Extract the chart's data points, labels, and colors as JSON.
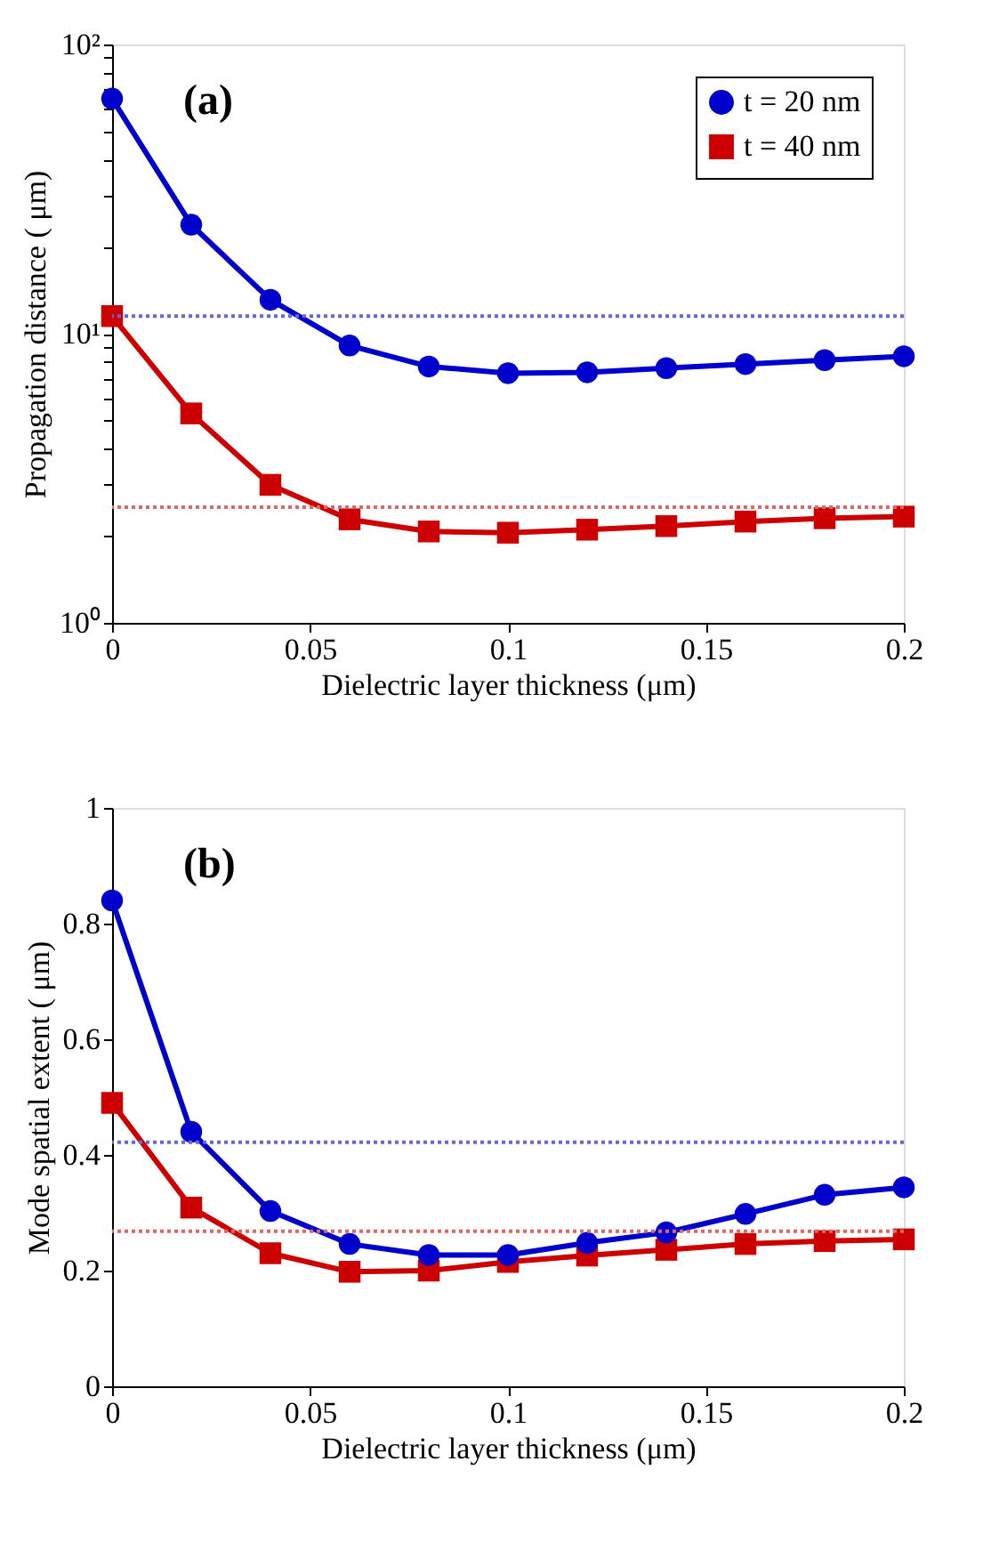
{
  "chart_data": [
    {
      "type": "line",
      "xlabel": "Dielectric layer thickness (μm)",
      "ylabel": "Propagation distance ( μm)",
      "annotations": [
        "(a)"
      ],
      "log": "y",
      "x": [
        0,
        0.02,
        0.04,
        0.06,
        0.08,
        0.1,
        0.12,
        0.14,
        0.16,
        0.18,
        0.2
      ],
      "series": [
        {
          "name": "t = 20 nm",
          "color": "#0000cc",
          "marker": "circle",
          "values": [
            65,
            23.8,
            13.1,
            9.1,
            7.7,
            7.3,
            7.35,
            7.6,
            7.85,
            8.1,
            8.35
          ]
        },
        {
          "name": "t = 40 nm",
          "color": "#cc0000",
          "marker": "square",
          "values": [
            11.5,
            5.3,
            3.0,
            2.28,
            2.07,
            2.05,
            2.1,
            2.16,
            2.24,
            2.3,
            2.33
          ]
        }
      ],
      "ref_lines": [
        {
          "axis": "y",
          "value": 11.5,
          "color": "#6666dd",
          "line_style": "dotted"
        },
        {
          "axis": "y",
          "value": 2.51,
          "color": "#dd6666",
          "line_style": "dotted"
        }
      ],
      "xlim": [
        0,
        0.2
      ],
      "xticks": [
        0,
        0.05,
        0.1,
        0.15,
        0.2
      ],
      "ylim": [
        1,
        100
      ],
      "yticks": [
        {
          "value": 1,
          "label": "10⁰"
        },
        {
          "value": 2,
          "label": null
        },
        {
          "value": 3,
          "label": null
        },
        {
          "value": 4,
          "label": null
        },
        {
          "value": 5,
          "label": null
        },
        {
          "value": 6,
          "label": null
        },
        {
          "value": 7,
          "label": null
        },
        {
          "value": 8,
          "label": null
        },
        {
          "value": 9,
          "label": null
        },
        {
          "value": 10,
          "label": "10¹"
        },
        {
          "value": 20,
          "label": null
        },
        {
          "value": 30,
          "label": null
        },
        {
          "value": 40,
          "label": null
        },
        {
          "value": 50,
          "label": null
        },
        {
          "value": 60,
          "label": null
        },
        {
          "value": 70,
          "label": null
        },
        {
          "value": 80,
          "label": null
        },
        {
          "value": 90,
          "label": null
        },
        {
          "value": 100,
          "label": "10²"
        }
      ],
      "grid": false,
      "legend": "top right",
      "line_style": "solid"
    },
    {
      "type": "line",
      "xlabel": "Dielectric layer thickness (μm)",
      "ylabel": "Mode spatial extent ( μm)",
      "annotations": [
        "(b)"
      ],
      "x": [
        0,
        0.02,
        0.04,
        0.06,
        0.08,
        0.1,
        0.12,
        0.14,
        0.16,
        0.18,
        0.2
      ],
      "series": [
        {
          "color": "#0000cc",
          "marker": "circle",
          "values": [
            0.84,
            0.44,
            0.303,
            0.246,
            0.227,
            0.227,
            0.248,
            0.266,
            0.298,
            0.331,
            0.344
          ]
        },
        {
          "color": "#cc0000",
          "marker": "square",
          "values": [
            0.49,
            0.309,
            0.23,
            0.198,
            0.2,
            0.215,
            0.226,
            0.236,
            0.246,
            0.251,
            0.254
          ]
        }
      ],
      "ref_lines": [
        {
          "axis": "y",
          "value": 0.422,
          "color": "#6666dd",
          "line_style": "dotted"
        },
        {
          "axis": "y",
          "value": 0.268,
          "color": "#dd6666",
          "line_style": "dotted"
        }
      ],
      "xlim": [
        0,
        0.2
      ],
      "xticks": [
        0,
        0.05,
        0.1,
        0.15,
        0.2
      ],
      "ylim": [
        0,
        1
      ],
      "yticks": [
        0,
        0.2,
        0.4,
        0.6,
        0.8,
        1
      ],
      "grid": false,
      "legend": false,
      "line_style": "solid"
    }
  ]
}
